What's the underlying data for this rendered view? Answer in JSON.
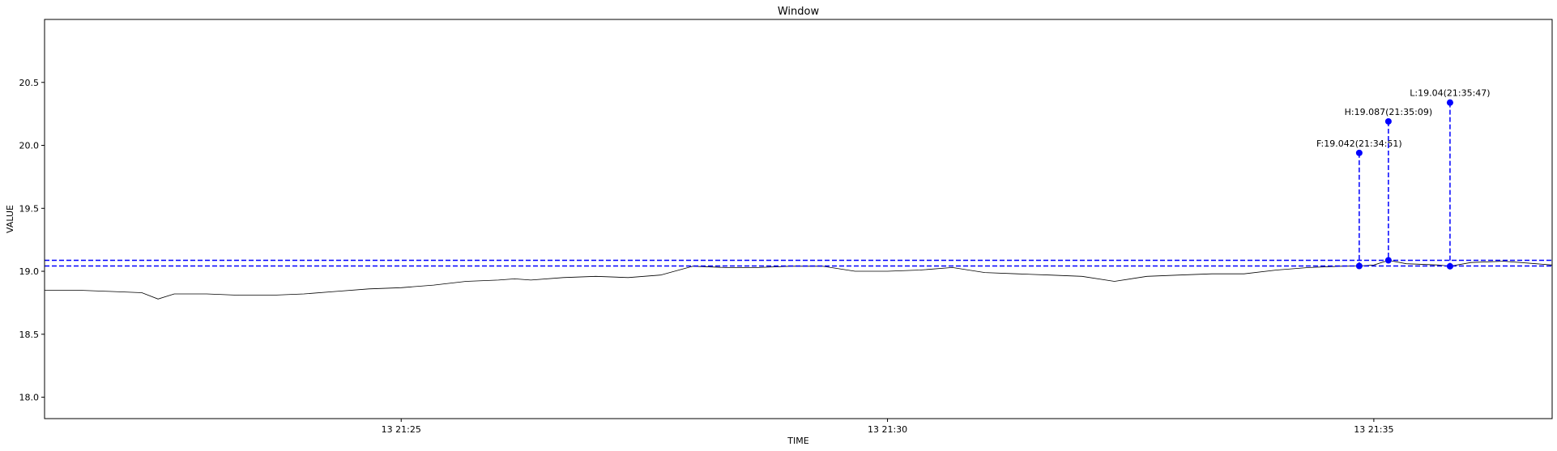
{
  "chart_data": {
    "type": "line",
    "title": "Window",
    "xlabel": "TIME",
    "ylabel": "VALUE",
    "date_prefix": "13",
    "ylim": [
      17.83,
      21.0
    ],
    "xlim": [
      "21:21:20",
      "21:36:50"
    ],
    "yticks": [
      18.0,
      18.5,
      19.0,
      19.5,
      20.0,
      20.5
    ],
    "ytick_labels": [
      "18.0",
      "18.5",
      "19.0",
      "19.5",
      "20.0",
      "20.5"
    ],
    "xticks": [
      "21:25:00",
      "21:30:00",
      "21:35:00"
    ],
    "xtick_labels": [
      "13 21:25",
      "13 21:30",
      "13 21:35"
    ],
    "grid": false,
    "series": [
      {
        "color": "#000000",
        "x": [
          "21:21:20",
          "21:21:40",
          "21:22:00",
          "21:22:20",
          "21:22:30",
          "21:22:40",
          "21:23:00",
          "21:23:20",
          "21:23:40",
          "21:24:00",
          "21:24:20",
          "21:24:40",
          "21:25:00",
          "21:25:20",
          "21:25:40",
          "21:26:00",
          "21:26:10",
          "21:26:20",
          "21:26:40",
          "21:27:00",
          "21:27:20",
          "21:27:40",
          "21:28:00",
          "21:28:20",
          "21:28:40",
          "21:29:00",
          "21:29:20",
          "21:29:40",
          "21:30:00",
          "21:30:20",
          "21:30:40",
          "21:31:00",
          "21:31:20",
          "21:31:40",
          "21:32:00",
          "21:32:20",
          "21:32:40",
          "21:33:00",
          "21:33:20",
          "21:33:40",
          "21:34:00",
          "21:34:20",
          "21:34:40",
          "21:34:51",
          "21:35:00",
          "21:35:09",
          "21:35:20",
          "21:35:40",
          "21:35:47",
          "21:36:00",
          "21:36:20",
          "21:36:40",
          "21:36:50"
        ],
        "y": [
          18.85,
          18.85,
          18.84,
          18.83,
          18.78,
          18.82,
          18.82,
          18.81,
          18.81,
          18.82,
          18.84,
          18.86,
          18.87,
          18.89,
          18.92,
          18.93,
          18.94,
          18.93,
          18.95,
          18.96,
          18.95,
          18.97,
          19.04,
          19.03,
          19.03,
          19.04,
          19.04,
          19.0,
          19.0,
          19.01,
          19.03,
          18.99,
          18.98,
          18.97,
          18.96,
          18.92,
          18.96,
          18.97,
          18.98,
          18.98,
          19.01,
          19.03,
          19.04,
          19.042,
          19.05,
          19.087,
          19.06,
          19.05,
          19.04,
          19.07,
          19.08,
          19.06,
          19.05
        ]
      }
    ],
    "hlines": [
      19.087,
      19.042
    ],
    "hlines_style": {
      "color": "#0000ff",
      "dash": "dashed"
    },
    "markers": [
      {
        "label": "F:19.042(21:34:51)",
        "x": "21:34:51",
        "value": 19.042,
        "stem_top": 19.94
      },
      {
        "label": "H:19.087(21:35:09)",
        "x": "21:35:09",
        "value": 19.087,
        "stem_top": 20.19
      },
      {
        "label": "L:19.04(21:35:47)",
        "x": "21:35:47",
        "value": 19.04,
        "stem_top": 20.34
      }
    ]
  }
}
